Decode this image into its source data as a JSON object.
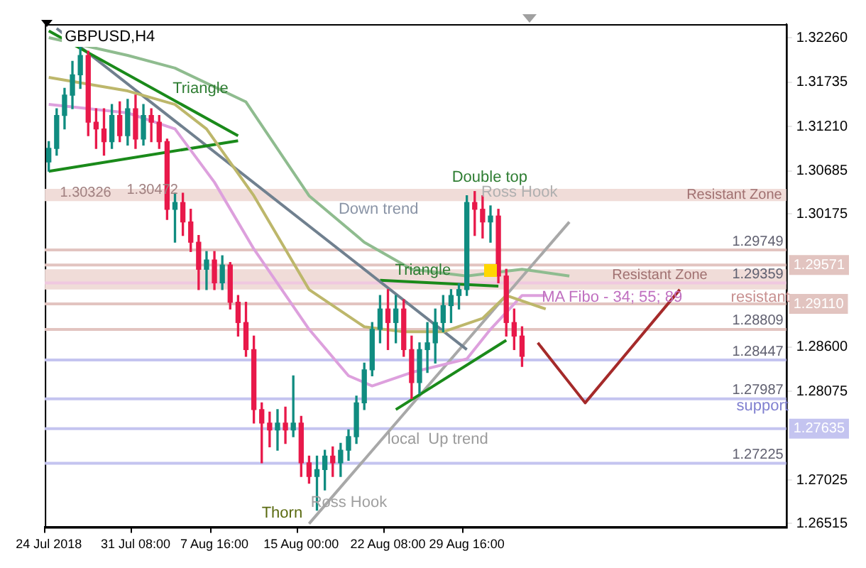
{
  "chart_data": {
    "type": "candlestick",
    "title": "GBPUSD,H4",
    "categories": [
      "24 Jul 2018",
      null,
      null,
      null,
      null,
      null,
      null,
      null,
      null,
      null,
      null,
      "31 Jul 08:00",
      null,
      null,
      null,
      null,
      null,
      null,
      null,
      null,
      null,
      "7 Aug 16:00",
      null,
      null,
      null,
      null,
      null,
      null,
      null,
      null,
      null,
      null,
      "15 Aug 00:00",
      null,
      null,
      null,
      null,
      null,
      null,
      null,
      null,
      null,
      null,
      "22 Aug 08:00",
      null,
      null,
      null,
      null,
      null,
      null,
      null,
      null,
      null,
      "29 Aug 16:00",
      null,
      null,
      null,
      null,
      null,
      null,
      null,
      null,
      null,
      null,
      null,
      null,
      null,
      null,
      null,
      null,
      null,
      null,
      null,
      null,
      null,
      null,
      null,
      null,
      null,
      null,
      null,
      null,
      null,
      null,
      null,
      null,
      null,
      null,
      null,
      null,
      null,
      null,
      null,
      null
    ],
    "ohlc": [
      [
        1.3079,
        1.3103,
        1.3068,
        1.3095
      ],
      [
        1.3095,
        1.3142,
        1.3087,
        1.3134
      ],
      [
        1.3134,
        1.3166,
        1.3118,
        1.3158
      ],
      [
        1.3158,
        1.3198,
        1.3142,
        1.3182
      ],
      [
        1.3182,
        1.3218,
        1.3166,
        1.3205
      ],
      [
        1.3205,
        1.321,
        1.311,
        1.3126
      ],
      [
        1.3126,
        1.3142,
        1.3095,
        1.3118
      ],
      [
        1.3118,
        1.3142,
        1.3087,
        1.3103
      ],
      [
        1.3103,
        1.3147,
        1.3095,
        1.3134
      ],
      [
        1.3134,
        1.315,
        1.3103,
        1.311
      ],
      [
        1.311,
        1.3153,
        1.3099,
        1.3142
      ],
      [
        1.3142,
        1.3158,
        1.3095,
        1.3106
      ],
      [
        1.3106,
        1.3147,
        1.3099,
        1.3134
      ],
      [
        1.3134,
        1.3142,
        1.3103,
        1.3126
      ],
      [
        1.3126,
        1.3134,
        1.3095,
        1.3103
      ],
      [
        1.3103,
        1.3106,
        1.3011,
        1.3023
      ],
      [
        1.3023,
        1.3042,
        1.2984,
        1.3031
      ],
      [
        1.3031,
        1.3042,
        1.2992,
        1.3008
      ],
      [
        1.3008,
        1.3023,
        1.2973,
        1.2984
      ],
      [
        1.2984,
        1.2992,
        1.2928,
        1.2952
      ],
      [
        1.2952,
        1.2973,
        1.2928,
        1.2963
      ],
      [
        1.2963,
        1.2973,
        1.2928,
        1.2936
      ],
      [
        1.2936,
        1.2968,
        1.2928,
        1.2957
      ],
      [
        1.2957,
        1.296,
        1.2905,
        1.2913
      ],
      [
        1.2913,
        1.2921,
        1.2873,
        1.2889
      ],
      [
        1.2889,
        1.2913,
        1.2849,
        1.2857
      ],
      [
        1.2857,
        1.2873,
        1.277,
        1.2786
      ],
      [
        1.2786,
        1.2794,
        1.2723,
        1.277
      ],
      [
        1.277,
        1.2783,
        1.2742,
        1.2762
      ],
      [
        1.2762,
        1.2786,
        1.2738,
        1.277
      ],
      [
        1.277,
        1.2789,
        1.2746,
        1.2762
      ],
      [
        1.2762,
        1.2826,
        1.2754,
        1.277
      ],
      [
        1.277,
        1.2778,
        1.2707,
        1.2723
      ],
      [
        1.2723,
        1.2731,
        1.2699,
        1.2707
      ],
      [
        1.2707,
        1.2731,
        1.2667,
        1.2715
      ],
      [
        1.2715,
        1.2738,
        1.2691,
        1.2731
      ],
      [
        1.2731,
        1.2742,
        1.2707,
        1.2723
      ],
      [
        1.2723,
        1.2746,
        1.2707,
        1.2738
      ],
      [
        1.2738,
        1.2762,
        1.2726,
        1.2754
      ],
      [
        1.2754,
        1.2802,
        1.2746,
        1.2794
      ],
      [
        1.2794,
        1.2841,
        1.2786,
        1.2833
      ],
      [
        1.2833,
        1.2889,
        1.2826,
        1.2881
      ],
      [
        1.2881,
        1.2921,
        1.2865,
        1.2905
      ],
      [
        1.2905,
        1.2928,
        1.2857,
        1.2889
      ],
      [
        1.2889,
        1.2921,
        1.2865,
        1.2905
      ],
      [
        1.2905,
        1.2916,
        1.2849,
        1.2857
      ],
      [
        1.2857,
        1.2873,
        1.2799,
        1.2818
      ],
      [
        1.2818,
        1.2865,
        1.2805,
        1.2857
      ],
      [
        1.2857,
        1.2889,
        1.283,
        1.2865
      ],
      [
        1.2865,
        1.2905,
        1.2841,
        1.2889
      ],
      [
        1.2889,
        1.2921,
        1.2878,
        1.2909
      ],
      [
        1.2909,
        1.2928,
        1.2889,
        1.2921
      ],
      [
        1.2921,
        1.2935,
        1.2905,
        1.2928
      ],
      [
        1.2928,
        1.3039,
        1.2921,
        1.3031
      ],
      [
        1.3031,
        1.3044,
        1.2992,
        1.3023
      ],
      [
        1.3023,
        1.3039,
        1.2989,
        1.3008
      ],
      [
        1.3008,
        1.3027,
        1.2984,
        1.3015
      ],
      [
        1.3015,
        1.3023,
        1.2936,
        1.2944
      ],
      [
        1.2944,
        1.2952,
        1.2873,
        1.2889
      ],
      [
        1.2889,
        1.2905,
        1.2857,
        1.2873
      ],
      [
        1.2873,
        1.2884,
        1.2837,
        1.2849
      ],
      null,
      null,
      null,
      null,
      null,
      null,
      null,
      null,
      null,
      null,
      null,
      null,
      null,
      null,
      null,
      null,
      null,
      null,
      null,
      null,
      null,
      null,
      null,
      null,
      null,
      null,
      null,
      null,
      null,
      null,
      null,
      null,
      null
    ],
    "colors": [
      "#108c80",
      "#108c80",
      "#108c80",
      "#108c80",
      "#108c80",
      "#e8194a",
      "#e8194a",
      "#e8194a",
      "#108c80",
      "#e8194a",
      "#108c80",
      "#e8194a",
      "#108c80",
      "#e8194a",
      "#e8194a",
      "#e8194a",
      "#108c80",
      "#e8194a",
      "#e8194a",
      "#e8194a",
      "#108c80",
      "#e8194a",
      "#108c80",
      "#e8194a",
      "#e8194a",
      "#e8194a",
      "#e8194a",
      "#e8194a",
      "#e8194a",
      "#108c80",
      "#e8194a",
      "#108c80",
      "#e8194a",
      "#e8194a",
      "#108c80",
      "#108c80",
      "#e8194a",
      "#108c80",
      "#108c80",
      "#108c80",
      "#108c80",
      "#108c80",
      "#108c80",
      "#e8194a",
      "#108c80",
      "#e8194a",
      "#e8194a",
      "#108c80",
      "#108c80",
      "#108c80",
      "#108c80",
      "#108c80",
      "#108c80",
      "#108c80",
      "#e8194a",
      "#e8194a",
      "#108c80",
      "#e8194a",
      "#e8194a",
      "#e8194a",
      "#e8194a",
      null,
      null,
      null,
      null,
      null,
      null,
      null,
      null,
      null,
      null,
      null,
      null,
      null,
      null,
      null,
      null,
      null,
      null,
      null,
      null,
      null,
      null,
      null,
      null,
      null,
      null,
      null,
      null,
      null,
      null,
      null,
      null,
      null
    ],
    "series": [
      {
        "type": "line",
        "color": "#8fbc8f",
        "values": [
          1.3226,
          null,
          null,
          null,
          null,
          null,
          null,
          null,
          null,
          null,
          1.3205,
          null,
          null,
          null,
          null,
          null,
          1.319,
          null,
          null,
          null,
          null,
          null,
          null,
          null,
          null,
          1.315,
          null,
          null,
          null,
          null,
          null,
          null,
          null,
          1.3039,
          null,
          null,
          null,
          null,
          null,
          null,
          1.2984,
          null,
          null,
          null,
          null,
          null,
          1.2952,
          null,
          null,
          null,
          null,
          null,
          null,
          1.2944,
          null,
          null,
          null,
          null,
          null,
          null,
          1.2952,
          null,
          null,
          null,
          null,
          null,
          1.2944,
          null,
          null,
          null,
          null,
          null,
          null,
          null,
          null,
          null,
          null,
          null,
          null,
          null,
          null,
          null,
          null,
          null,
          null,
          null,
          null,
          null,
          null,
          null,
          null,
          null,
          null,
          null
        ]
      },
      {
        "type": "line",
        "color": "#bdb76b",
        "values": [
          1.3179,
          null,
          null,
          null,
          null,
          null,
          null,
          null,
          null,
          null,
          1.3163,
          null,
          null,
          null,
          null,
          null,
          1.3147,
          null,
          null,
          null,
          1.3118,
          null,
          null,
          null,
          null,
          null,
          1.3039,
          null,
          null,
          null,
          null,
          null,
          null,
          1.2928,
          null,
          null,
          null,
          null,
          null,
          null,
          1.2884,
          null,
          null,
          null,
          null,
          1.2878,
          null,
          null,
          null,
          null,
          1.2878,
          null,
          null,
          null,
          null,
          1.2894,
          null,
          null,
          1.2921,
          null,
          null,
          null,
          null,
          1.2905,
          null,
          null,
          null,
          null,
          null,
          null,
          null,
          null,
          null,
          null,
          null,
          null,
          null,
          null,
          null,
          null,
          null,
          null,
          null,
          null,
          null,
          null,
          null,
          null,
          null,
          null,
          null,
          null,
          null,
          null
        ]
      },
      {
        "type": "line",
        "color": "#dda0dd",
        "values": [
          1.3147,
          null,
          null,
          null,
          null,
          null,
          null,
          null,
          null,
          null,
          1.3137,
          null,
          null,
          null,
          null,
          null,
          1.3118,
          null,
          null,
          null,
          null,
          1.3055,
          null,
          null,
          null,
          null,
          1.2976,
          null,
          null,
          null,
          null,
          null,
          null,
          1.2881,
          null,
          null,
          null,
          null,
          1.2826,
          null,
          null,
          1.2814,
          null,
          null,
          null,
          null,
          1.283,
          null,
          null,
          null,
          null,
          null,
          null,
          1.2846,
          null,
          null,
          1.2881,
          null,
          null,
          null,
          1.2921,
          null,
          null,
          1.2921,
          null,
          null,
          null,
          null,
          null,
          null,
          null,
          null,
          null,
          null,
          null,
          null,
          null,
          null,
          null,
          null,
          null,
          null,
          null,
          null,
          null,
          null,
          null,
          null,
          null,
          null,
          null,
          null,
          null,
          null
        ]
      },
      {
        "type": "line",
        "color": "#1a8a1a",
        "values": [
          1.3234,
          null,
          null,
          null,
          null,
          null,
          null,
          null,
          null,
          null,
          null,
          null,
          null,
          null,
          null,
          null,
          null,
          null,
          null,
          null,
          null,
          null,
          null,
          null,
          1.311,
          null,
          null,
          null,
          null,
          null,
          null,
          null,
          null,
          null,
          null,
          null,
          null,
          null,
          null,
          null,
          null,
          null,
          null,
          null,
          null,
          null,
          null,
          null,
          null,
          null,
          null,
          null,
          null,
          null,
          null,
          null,
          null,
          null,
          null,
          null,
          null,
          null,
          null,
          null,
          null,
          null,
          null,
          null,
          null,
          null,
          null,
          null,
          null,
          null,
          null,
          null,
          null,
          null,
          null,
          null,
          null,
          null,
          null,
          null,
          null,
          null,
          null,
          null,
          null,
          null,
          null,
          null,
          null,
          null
        ]
      },
      {
        "type": "line",
        "color": "#1a8a1a",
        "values": [
          1.3068,
          null,
          null,
          null,
          null,
          null,
          null,
          null,
          null,
          null,
          null,
          null,
          null,
          null,
          null,
          null,
          null,
          null,
          null,
          null,
          null,
          null,
          null,
          null,
          1.3104,
          null,
          null,
          null,
          null,
          null,
          null,
          null,
          null,
          null,
          null,
          null,
          null,
          null,
          null,
          null,
          null,
          null,
          null,
          null,
          null,
          null,
          null,
          null,
          null,
          null,
          null,
          null,
          null,
          null,
          null,
          null,
          null,
          null,
          null,
          null,
          null,
          null,
          null,
          null,
          null,
          null,
          null,
          null,
          null,
          null,
          null,
          null,
          null,
          null,
          null,
          null,
          null,
          null,
          null,
          null,
          null,
          null,
          null,
          null,
          null,
          null,
          null,
          null,
          null,
          null,
          null,
          null,
          null,
          null
        ]
      },
      {
        "type": "line",
        "color": "#70808f",
        "values": [
          null,
          1.3237,
          null,
          null,
          null,
          null,
          null,
          null,
          null,
          null,
          null,
          null,
          null,
          null,
          null,
          null,
          null,
          null,
          null,
          null,
          null,
          null,
          null,
          null,
          null,
          null,
          null,
          null,
          null,
          null,
          null,
          null,
          null,
          null,
          null,
          null,
          null,
          null,
          null,
          null,
          null,
          null,
          null,
          null,
          null,
          null,
          null,
          null,
          null,
          null,
          null,
          null,
          null,
          1.2857,
          null,
          null,
          null,
          null,
          null,
          null,
          null,
          null,
          null,
          null,
          null,
          null,
          null,
          null,
          null,
          null,
          null,
          null,
          null,
          null,
          null,
          null,
          null,
          null,
          null,
          null,
          null,
          null,
          null,
          null,
          null,
          null,
          null,
          null,
          null,
          null,
          null,
          null,
          null,
          null
        ]
      },
      {
        "type": "line",
        "color": "#1a8a1a",
        "values": [
          null,
          null,
          null,
          null,
          null,
          null,
          null,
          null,
          null,
          null,
          null,
          null,
          null,
          null,
          null,
          null,
          null,
          null,
          null,
          null,
          null,
          null,
          null,
          null,
          null,
          null,
          null,
          null,
          null,
          null,
          null,
          null,
          null,
          null,
          null,
          null,
          null,
          null,
          null,
          null,
          null,
          null,
          1.2939,
          null,
          null,
          null,
          null,
          null,
          null,
          null,
          null,
          null,
          null,
          null,
          null,
          null,
          null,
          1.2932,
          null,
          null,
          null,
          null,
          null,
          null,
          null,
          null,
          null,
          null,
          null,
          null,
          null,
          null,
          null,
          null,
          null,
          null,
          null,
          null,
          null,
          null,
          null,
          null,
          null,
          null,
          null,
          null,
          null,
          null,
          null,
          null,
          null,
          null,
          null,
          null
        ]
      },
      {
        "type": "line",
        "color": "#1a8a1a",
        "values": [
          null,
          null,
          null,
          null,
          null,
          null,
          null,
          null,
          null,
          null,
          null,
          null,
          null,
          null,
          null,
          null,
          null,
          null,
          null,
          null,
          null,
          null,
          null,
          null,
          null,
          null,
          null,
          null,
          null,
          null,
          null,
          null,
          null,
          null,
          null,
          null,
          null,
          null,
          null,
          null,
          null,
          null,
          null,
          null,
          1.2786,
          null,
          null,
          null,
          null,
          null,
          null,
          null,
          null,
          null,
          null,
          null,
          null,
          null,
          1.2868,
          null,
          null,
          null,
          null,
          null,
          null,
          null,
          null,
          null,
          null,
          null,
          null,
          null,
          null,
          null,
          null,
          null,
          null,
          null,
          null,
          null,
          null,
          null,
          null,
          null,
          null,
          null,
          null,
          null,
          null,
          null,
          null,
          null,
          null,
          null
        ]
      },
      {
        "type": "line",
        "color": "#a8a8a8",
        "values": [
          null,
          null,
          null,
          null,
          null,
          null,
          null,
          null,
          null,
          null,
          null,
          null,
          null,
          null,
          null,
          null,
          null,
          null,
          null,
          null,
          null,
          null,
          null,
          null,
          null,
          null,
          null,
          null,
          null,
          null,
          null,
          null,
          null,
          1.2651,
          null,
          null,
          null,
          null,
          null,
          null,
          null,
          null,
          null,
          null,
          null,
          null,
          null,
          null,
          null,
          null,
          null,
          null,
          null,
          null,
          null,
          null,
          null,
          null,
          null,
          null,
          null,
          null,
          null,
          null,
          null,
          null,
          1.3008,
          null,
          null,
          null,
          null,
          null,
          null,
          null,
          null,
          null,
          null,
          null,
          null,
          null,
          null,
          null,
          null,
          null,
          null,
          null,
          null,
          null,
          null,
          null,
          null,
          null,
          null,
          null
        ]
      },
      {
        "type": "line",
        "color": "#a52a2a",
        "values": [
          null,
          null,
          null,
          null,
          null,
          null,
          null,
          null,
          null,
          null,
          null,
          null,
          null,
          null,
          null,
          null,
          null,
          null,
          null,
          null,
          null,
          null,
          null,
          null,
          null,
          null,
          null,
          null,
          null,
          null,
          null,
          null,
          null,
          null,
          null,
          null,
          null,
          null,
          null,
          null,
          null,
          null,
          null,
          null,
          null,
          null,
          null,
          null,
          null,
          null,
          null,
          null,
          null,
          null,
          null,
          null,
          null,
          null,
          null,
          null,
          null,
          null,
          1.2865,
          null,
          null,
          null,
          null,
          null,
          1.2794,
          null,
          null,
          null,
          null,
          null,
          null,
          null,
          null,
          null,
          null,
          null,
          1.2928,
          null,
          null,
          null,
          null,
          null,
          null,
          null,
          null,
          null,
          null,
          null,
          null,
          null
        ]
      }
    ],
    "ylim": [
      1.2647,
      1.3242
    ],
    "yticks": [
      {
        "value": 1.3226,
        "label": "1.32260"
      },
      {
        "value": 1.31735,
        "label": "1.31735"
      },
      {
        "value": 1.3121,
        "label": "1.31210"
      },
      {
        "value": 1.30685,
        "label": "1.30685"
      },
      {
        "value": 1.30175,
        "label": "1.30175"
      },
      {
        "value": 1.286,
        "label": "1.28600"
      },
      {
        "value": 1.28075,
        "label": "1.28075"
      },
      {
        "value": 1.27025,
        "label": "1.27025"
      },
      {
        "value": 1.26515,
        "label": "1.26515"
      }
    ],
    "bands": [
      {
        "axis": "y",
        "from": 1.30326,
        "to": 1.30472,
        "label": "Resistant Zone",
        "color": "#f0dcd8"
      },
      {
        "axis": "y",
        "from": 1.2928,
        "to": 1.2952,
        "label": "Resistant Zone",
        "color": "#f0dcd8"
      }
    ],
    "ref_lines": [
      {
        "axis": "y",
        "value": 1.29749,
        "label": "1.29749",
        "color": "#e2c4c0"
      },
      {
        "axis": "y",
        "value": 1.29571,
        "label": "1.29571",
        "color": "#e2c4c0"
      },
      {
        "axis": "y",
        "value": 1.29359,
        "label": "1.29359",
        "color": "#f0c8e0"
      },
      {
        "axis": "y",
        "value": 1.2911,
        "label": "1.29110",
        "color": "#e2c4c0"
      },
      {
        "axis": "y",
        "value": 1.28809,
        "label": "1.28809",
        "color": "#e2c4c0"
      },
      {
        "axis": "y",
        "value": 1.28447,
        "label": "1.28447",
        "color": "#c4c4f0"
      },
      {
        "axis": "y",
        "value": 1.27987,
        "label": "1.27987",
        "color": "#c4c4f0"
      },
      {
        "axis": "y",
        "value": 1.27635,
        "label": "1.27635",
        "color": "#c4c4f0"
      },
      {
        "axis": "y",
        "value": 1.27225,
        "label": "1.27225",
        "color": "#c4c4f0"
      }
    ],
    "annotations": [
      "Triangle",
      "Down trend",
      "Double top",
      "Ross Hook",
      "Triangle",
      "MA Fibo - 34; 55; 89",
      "resistant",
      "support",
      "local  Up trend",
      "Thorn",
      "Ross Hook",
      "1.30326",
      "1.30472"
    ],
    "grid": false,
    "legend": false
  }
}
